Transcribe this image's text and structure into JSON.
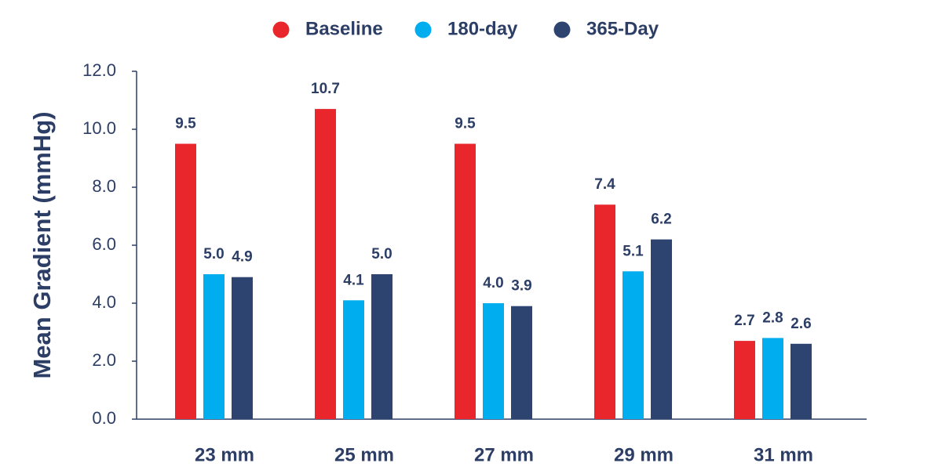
{
  "chart_data": {
    "type": "bar",
    "categories": [
      "23 mm",
      "25 mm",
      "27 mm",
      "29 mm",
      "31 mm"
    ],
    "series": [
      {
        "name": "Baseline",
        "color": "#e8262c",
        "values": [
          9.5,
          10.7,
          9.5,
          7.4,
          2.7
        ]
      },
      {
        "name": "180-day",
        "color": "#00aeef",
        "values": [
          5.0,
          4.1,
          4.0,
          5.1,
          2.8
        ]
      },
      {
        "name": "365-Day",
        "color": "#2d4370",
        "values": [
          4.9,
          5.0,
          3.9,
          6.2,
          2.6
        ]
      }
    ],
    "ylabel": "Mean Gradient (mmHg)",
    "xlabel": "",
    "title": "",
    "ylim": [
      0,
      12
    ],
    "yticks": [
      "0.0",
      "2.0",
      "4.0",
      "6.0",
      "8.0",
      "10.0",
      "12.0"
    ],
    "legend_position": "top-center",
    "grid": false,
    "axis_color": "#2c3e66"
  }
}
